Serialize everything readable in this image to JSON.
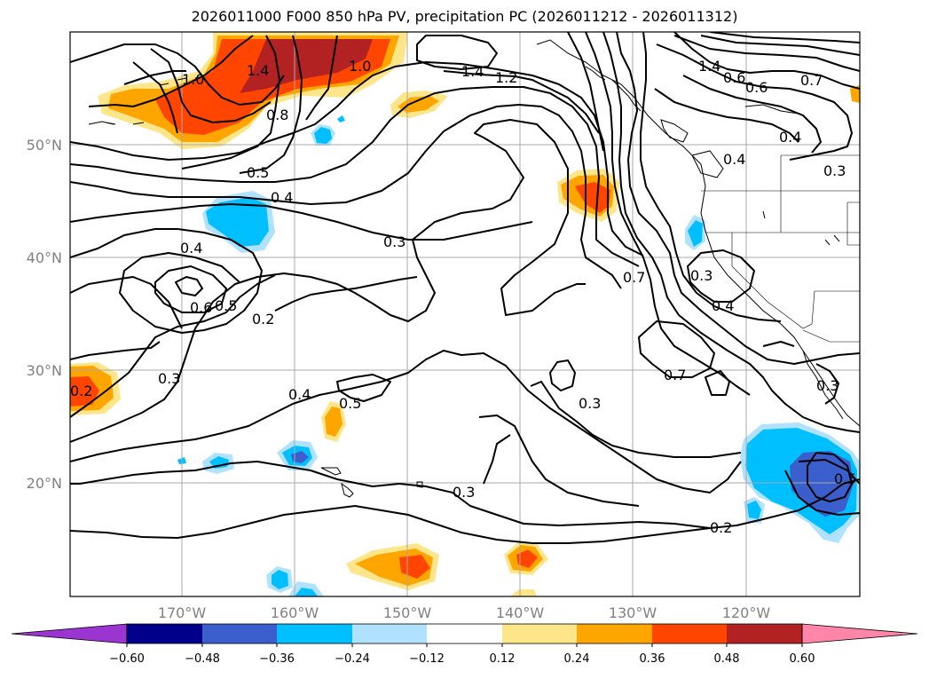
{
  "title": "2026011000 F000 850 hPa PV, precipitation PC (2026011212 - 2026011312)",
  "lat_labels": [
    "50°N",
    "40°N",
    "30°N",
    "20°N"
  ],
  "lon_labels": [
    "170°W",
    "160°W",
    "150°W",
    "140°W",
    "130°W",
    "120°W"
  ],
  "colorbar": {
    "colors": [
      "#9a35d1",
      "#00008b",
      "#3a5fcd",
      "#00bfff",
      "#b0e2ff",
      "#ffffff",
      "#fde68a",
      "#ffa500",
      "#ff4500",
      "#b22222",
      "#ff86a8"
    ],
    "tick_labels": [
      "−0.60",
      "−0.48",
      "−0.36",
      "−0.24",
      "−0.12",
      "0.12",
      "0.24",
      "0.36",
      "0.48",
      "0.60"
    ]
  },
  "contour_labels": [
    "1.0",
    "1.4",
    "1.0",
    "0.8",
    "0.5",
    "0.4",
    "1.4",
    "1.2",
    "1.4",
    "0.6",
    "0.6",
    "0.7",
    "0.4",
    "0.4",
    "0.3",
    "0.3",
    "0.4",
    "0.6",
    "0.5",
    "0.2",
    "0.7",
    "0.3",
    "0.4",
    "0.3",
    "0.2",
    "0.4",
    "0.5",
    "0.7",
    "0.3",
    "0.3",
    "0.5",
    "0.3",
    "0.2"
  ]
}
